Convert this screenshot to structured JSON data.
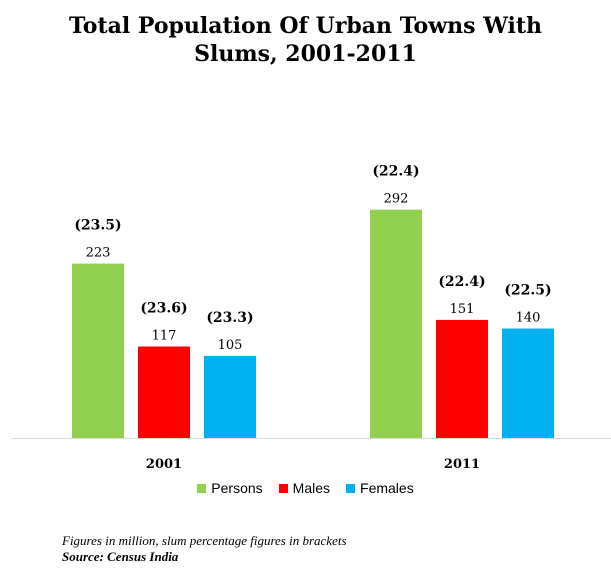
{
  "title_line1": "Total Population Of Urban Towns With",
  "title_line2": "Slums, 2001-2011",
  "footnote": "Figures in million, slum percentage figures in brackets",
  "source": "Source: Census India",
  "chart_data": {
    "type": "bar",
    "title": "Total Population Of Urban Towns With Slums, 2001-2011",
    "categories": [
      "2001",
      "2011"
    ],
    "ylim": [
      0,
      300
    ],
    "grid": false,
    "legend_position": "bottom",
    "series": [
      {
        "name": "Persons",
        "color": "#92D050",
        "values": [
          223,
          292
        ],
        "labels": [
          "223",
          "292"
        ],
        "bracket": [
          "(23.5)",
          "(22.4)"
        ]
      },
      {
        "name": "Males",
        "color": "#FF0000",
        "values": [
          117,
          151
        ],
        "labels": [
          "117",
          "151"
        ],
        "bracket": [
          "(23.6)",
          "(22.4)"
        ]
      },
      {
        "name": "Females",
        "color": "#00B0F0",
        "values": [
          105,
          140
        ],
        "labels": [
          "105",
          "140"
        ],
        "bracket": [
          "(23.3)",
          "(22.5)"
        ]
      }
    ]
  }
}
